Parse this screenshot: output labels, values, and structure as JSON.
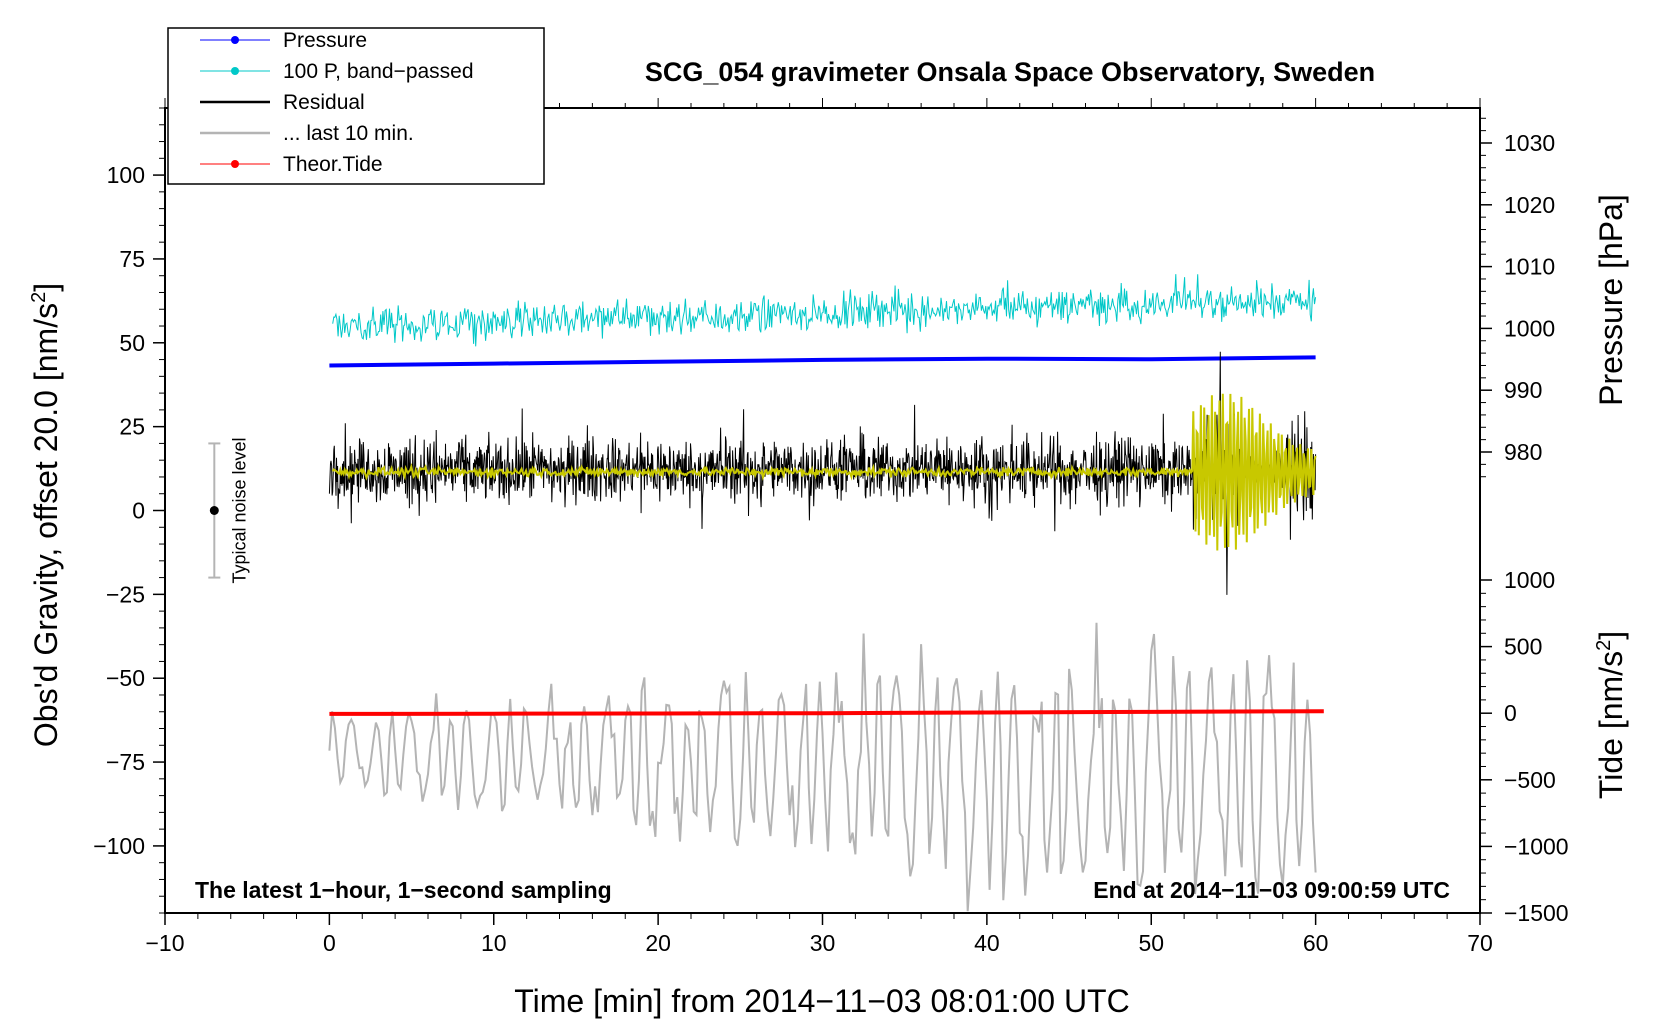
{
  "chart_data": {
    "type": "line",
    "title": "SCG_054 gravimeter Onsala Space Observatory, Sweden",
    "xlabel": "Time [min] from 2014−11−03 08:01:00 UTC",
    "ylabel_main": "Obs'd Gravity, offset 20.0 [nm/s",
    "ylabel_main_sup": "2",
    "ylabel_main_end": "]",
    "ylabel_pressure": "Pressure [hPa]",
    "ylabel_tide": "Tide [nm/s",
    "ylabel_tide_sup": "2",
    "ylabel_tide_end": "]",
    "xlim": [
      -10,
      70
    ],
    "ylim_main": [
      -120,
      120
    ],
    "pressure_range": [
      960,
      1036
    ],
    "tide_range": [
      -1500,
      1000
    ],
    "x_ticks": [
      {
        "value": -10,
        "label": "−10"
      },
      {
        "value": 0,
        "label": "0"
      },
      {
        "value": 10,
        "label": "10"
      },
      {
        "value": 20,
        "label": "20"
      },
      {
        "value": 30,
        "label": "30"
      },
      {
        "value": 40,
        "label": "40"
      },
      {
        "value": 50,
        "label": "50"
      },
      {
        "value": 60,
        "label": "60"
      },
      {
        "value": 70,
        "label": "70"
      }
    ],
    "y_ticks_main": [
      {
        "value": 100,
        "label": "100"
      },
      {
        "value": 75,
        "label": "75"
      },
      {
        "value": 50,
        "label": "50"
      },
      {
        "value": 25,
        "label": "25"
      },
      {
        "value": 0,
        "label": "0"
      },
      {
        "value": -25,
        "label": "−25"
      },
      {
        "value": -50,
        "label": "−50"
      },
      {
        "value": -75,
        "label": "−75"
      },
      {
        "value": -100,
        "label": "−100"
      }
    ],
    "pressure_ticks": [
      {
        "value": 1030,
        "label": "1030"
      },
      {
        "value": 1020,
        "label": "1020"
      },
      {
        "value": 1010,
        "label": "1010"
      },
      {
        "value": 1000,
        "label": "1000"
      },
      {
        "value": 990,
        "label": "990"
      },
      {
        "value": 980,
        "label": "980"
      }
    ],
    "tide_ticks": [
      {
        "value": 1000,
        "label": "1000"
      },
      {
        "value": 500,
        "label": "500"
      },
      {
        "value": 0,
        "label": "0"
      },
      {
        "value": -500,
        "label": "−500"
      },
      {
        "value": -1000,
        "label": "−1000"
      },
      {
        "value": -1500,
        "label": "−1500"
      }
    ],
    "annotations": {
      "left": "The latest 1−hour, 1−second sampling",
      "right": "End at 2014−11−03 09:00:59 UTC",
      "noise_label": "Typical noise level",
      "noise_center": 0,
      "noise_halfwidth": 20,
      "noise_x": -7
    },
    "legend": [
      {
        "label": "Pressure",
        "color": "#0000ff",
        "marker": true
      },
      {
        "label": "100 P, band−passed",
        "color": "#00c8c8",
        "marker": true
      },
      {
        "label": "Residual",
        "color": "#000000",
        "marker": false
      },
      {
        "label": "... last 10 min.",
        "color": "#b4b4b4",
        "marker": false
      },
      {
        "label": "Theor.Tide",
        "color": "#ff0000",
        "marker": true
      }
    ],
    "series": [
      {
        "name": "Pressure",
        "axis": "pressure",
        "color": "#0000ff",
        "x": [
          0,
          10,
          20,
          30,
          40,
          50,
          60
        ],
        "y": [
          994.0,
          994.3,
          994.6,
          994.9,
          995.1,
          995.0,
          995.3
        ]
      },
      {
        "name": "100 P, band-passed",
        "axis": "main",
        "color": "#00c8c8",
        "x_range": [
          0.2,
          60
        ],
        "mean_start": 55,
        "mean_end": 63,
        "amplitude": 9
      },
      {
        "name": "Residual",
        "axis": "main",
        "color": "#000000",
        "x_range": [
          0,
          60
        ],
        "mean": 12,
        "amplitude": 24,
        "burst_start": 52.5,
        "burst_amplitude": 48
      },
      {
        "name": "Residual smoothed",
        "axis": "main",
        "color": "#c8c800",
        "x_range": [
          0.2,
          60
        ],
        "mean": 11.5,
        "amplitude": 2,
        "burst_start": 52.5,
        "burst_amplitude": 18
      },
      {
        "name": "... last 10 min.",
        "axis": "main",
        "color": "#b4b4b4",
        "x_range": [
          0,
          60
        ],
        "mean_start": -72,
        "mean_end": -80,
        "amplitude": 32
      },
      {
        "name": "Theor.Tide",
        "axis": "tide",
        "color": "#ff0000",
        "x": [
          0,
          10,
          20,
          30,
          40,
          50,
          60.5
        ],
        "y": [
          -5,
          -4,
          -2,
          0,
          5,
          10,
          15
        ]
      }
    ]
  }
}
